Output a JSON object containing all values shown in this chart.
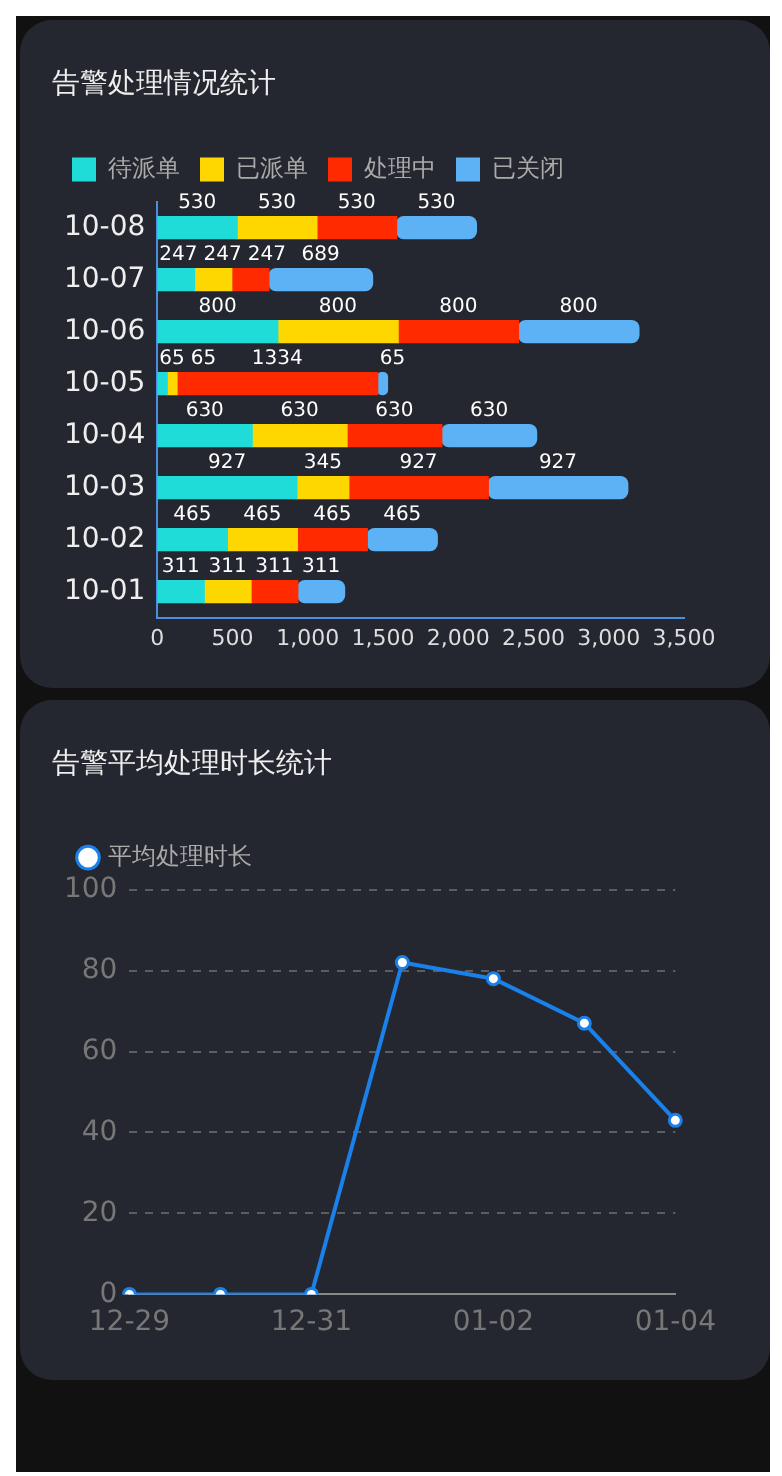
{
  "chart_data": [
    {
      "type": "bar",
      "title": "告警处理情况统计",
      "orientation": "horizontal",
      "stacked": true,
      "categories": [
        "10-08",
        "10-07",
        "10-06",
        "10-05",
        "10-04",
        "10-03",
        "10-02",
        "10-01"
      ],
      "series": [
        {
          "name": "待派单",
          "color": "#20dcd8",
          "values": [
            530,
            247,
            800,
            65,
            630,
            927,
            465,
            311
          ]
        },
        {
          "name": "已派单",
          "color": "#ffd700",
          "values": [
            530,
            247,
            800,
            65,
            630,
            345,
            465,
            311
          ]
        },
        {
          "name": "处理中",
          "color": "#ff2a00",
          "values": [
            530,
            247,
            800,
            1334,
            630,
            927,
            465,
            311
          ]
        },
        {
          "name": "已关闭",
          "color": "#5cb2f5",
          "values": [
            530,
            689,
            800,
            65,
            630,
            927,
            465,
            311
          ]
        }
      ],
      "xlim": [
        0,
        3500
      ],
      "xticks": [
        0,
        500,
        {
          "value": 1000,
          "label": "1,000"
        },
        {
          "value": 1500,
          "label": "1,500"
        },
        {
          "value": 2000,
          "label": "2,000"
        },
        {
          "value": 2500,
          "label": "2,500"
        },
        {
          "value": 3000,
          "label": "3,000"
        },
        {
          "value": 3500,
          "label": "3,500"
        }
      ],
      "data_labels": true,
      "legend": "top left",
      "grid": false
    },
    {
      "type": "line",
      "title": "告警平均处理时长统计",
      "categories": [
        "12-29",
        null,
        "12-31",
        null,
        "01-02",
        null,
        "01-04"
      ],
      "series": [
        {
          "name": "平均处理时长",
          "color": "#1a80ea",
          "values": [
            0,
            0,
            0,
            82,
            78,
            67,
            43
          ]
        }
      ],
      "ylim": [
        0,
        100
      ],
      "yticks": [
        0,
        20,
        40,
        60,
        80,
        100
      ],
      "grid": "y",
      "marker": "circle",
      "line_style": "solid",
      "legend": "top left"
    }
  ]
}
